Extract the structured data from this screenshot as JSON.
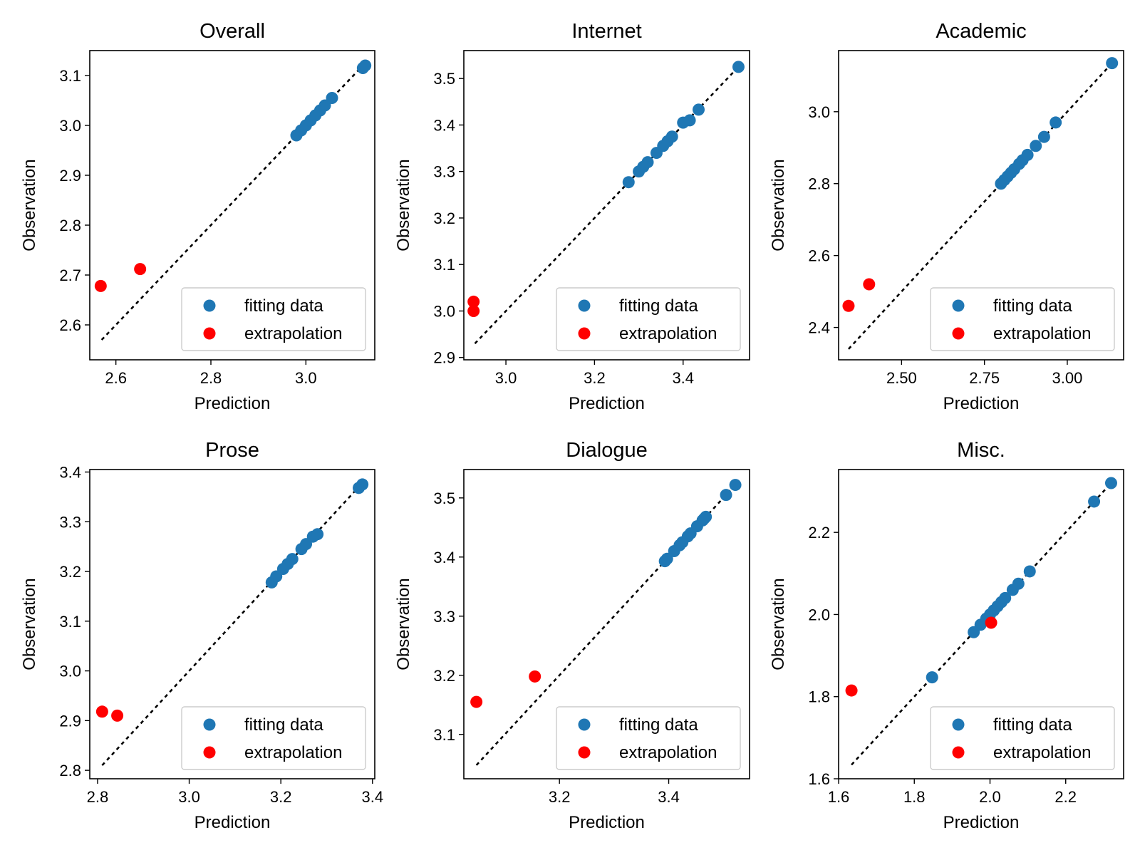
{
  "colors": {
    "fitting": "#1f77b4",
    "extrapolation": "#ff0000",
    "identity_line": "#000000"
  },
  "legend": {
    "fitting_label": "fitting data",
    "extrapolation_label": "extrapolation",
    "placement": "lower-right"
  },
  "chart_data": [
    {
      "type": "scatter",
      "title": "Overall",
      "xlabel": "Prediction",
      "ylabel": "Observation",
      "xlim": [
        2.545,
        3.145
      ],
      "ylim": [
        2.53,
        3.15
      ],
      "xticks": [
        2.6,
        2.8,
        3.0
      ],
      "xticklabels": [
        "2.6",
        "2.8",
        "3.0"
      ],
      "yticks": [
        2.6,
        2.7,
        2.8,
        2.9,
        3.0,
        3.1
      ],
      "yticklabels": [
        "2.6",
        "2.7",
        "2.8",
        "2.9",
        "3.0",
        "3.1"
      ],
      "identity_line": [
        2.57,
        3.12
      ],
      "series": [
        {
          "name": "fitting data",
          "points": [
            [
              2.98,
              2.98
            ],
            [
              2.99,
              2.99
            ],
            [
              3.0,
              3.0
            ],
            [
              3.01,
              3.01
            ],
            [
              3.02,
              3.02
            ],
            [
              3.03,
              3.03
            ],
            [
              3.04,
              3.04
            ],
            [
              3.055,
              3.055
            ],
            [
              3.12,
              3.115
            ],
            [
              3.125,
              3.12
            ]
          ]
        },
        {
          "name": "extrapolation",
          "points": [
            [
              2.568,
              2.678
            ],
            [
              2.651,
              2.712
            ]
          ]
        }
      ]
    },
    {
      "type": "scatter",
      "title": "Internet",
      "xlabel": "Prediction",
      "ylabel": "Observation",
      "xlim": [
        2.905,
        3.55
      ],
      "ylim": [
        2.895,
        3.56
      ],
      "xticks": [
        3.0,
        3.2,
        3.4
      ],
      "xticklabels": [
        "3.0",
        "3.2",
        "3.4"
      ],
      "yticks": [
        2.9,
        3.0,
        3.1,
        3.2,
        3.3,
        3.4,
        3.5
      ],
      "yticklabels": [
        "2.9",
        "3.0",
        "3.1",
        "3.2",
        "3.3",
        "3.4",
        "3.5"
      ],
      "identity_line": [
        2.93,
        3.525
      ],
      "series": [
        {
          "name": "fitting data",
          "points": [
            [
              3.277,
              3.277
            ],
            [
              3.3,
              3.3
            ],
            [
              3.31,
              3.31
            ],
            [
              3.32,
              3.32
            ],
            [
              3.34,
              3.34
            ],
            [
              3.355,
              3.355
            ],
            [
              3.365,
              3.365
            ],
            [
              3.375,
              3.375
            ],
            [
              3.4,
              3.405
            ],
            [
              3.415,
              3.41
            ],
            [
              3.435,
              3.433
            ],
            [
              3.525,
              3.525
            ]
          ]
        },
        {
          "name": "extrapolation",
          "points": [
            [
              2.927,
              3.02
            ],
            [
              2.927,
              3.0
            ]
          ]
        }
      ]
    },
    {
      "type": "scatter",
      "title": "Academic",
      "xlabel": "Prediction",
      "ylabel": "Observation",
      "xlim": [
        2.31,
        3.17
      ],
      "ylim": [
        2.31,
        3.17
      ],
      "xticks": [
        2.5,
        2.75,
        3.0
      ],
      "xticklabels": [
        "2.50",
        "2.75",
        "3.00"
      ],
      "yticks": [
        2.4,
        2.6,
        2.8,
        3.0
      ],
      "yticklabels": [
        "2.4",
        "2.6",
        "2.8",
        "3.0"
      ],
      "identity_line": [
        2.34,
        3.135
      ],
      "series": [
        {
          "name": "fitting data",
          "points": [
            [
              2.8,
              2.8
            ],
            [
              2.81,
              2.81
            ],
            [
              2.82,
              2.82
            ],
            [
              2.83,
              2.83
            ],
            [
              2.84,
              2.84
            ],
            [
              2.855,
              2.855
            ],
            [
              2.865,
              2.865
            ],
            [
              2.88,
              2.88
            ],
            [
              2.905,
              2.905
            ],
            [
              2.93,
              2.93
            ],
            [
              2.965,
              2.97
            ],
            [
              3.135,
              3.135
            ]
          ]
        },
        {
          "name": "extrapolation",
          "points": [
            [
              2.34,
              2.46
            ],
            [
              2.402,
              2.52
            ]
          ]
        }
      ]
    },
    {
      "type": "scatter",
      "title": "Prose",
      "xlabel": "Prediction",
      "ylabel": "Observation",
      "xlim": [
        2.783,
        3.405
      ],
      "ylim": [
        2.783,
        3.405
      ],
      "xticks": [
        2.8,
        3.0,
        3.2,
        3.4
      ],
      "xticklabels": [
        "2.8",
        "3.0",
        "3.2",
        "3.4"
      ],
      "yticks": [
        2.8,
        2.9,
        3.0,
        3.1,
        3.2,
        3.3,
        3.4
      ],
      "yticklabels": [
        "2.8",
        "2.9",
        "3.0",
        "3.1",
        "3.2",
        "3.3",
        "3.4"
      ],
      "identity_line": [
        2.81,
        3.375
      ],
      "series": [
        {
          "name": "fitting data",
          "points": [
            [
              3.18,
              3.178
            ],
            [
              3.19,
              3.19
            ],
            [
              3.205,
              3.205
            ],
            [
              3.215,
              3.215
            ],
            [
              3.225,
              3.225
            ],
            [
              3.245,
              3.245
            ],
            [
              3.255,
              3.255
            ],
            [
              3.27,
              3.27
            ],
            [
              3.28,
              3.275
            ],
            [
              3.37,
              3.368
            ],
            [
              3.378,
              3.375
            ]
          ]
        },
        {
          "name": "extrapolation",
          "points": [
            [
              2.81,
              2.918
            ],
            [
              2.843,
              2.91
            ]
          ]
        }
      ]
    },
    {
      "type": "scatter",
      "title": "Dialogue",
      "xlabel": "Prediction",
      "ylabel": "Observation",
      "xlim": [
        3.025,
        3.548
      ],
      "ylim": [
        3.025,
        3.548
      ],
      "xticks": [
        3.2,
        3.4
      ],
      "xticklabels": [
        "3.2",
        "3.4"
      ],
      "yticks": [
        3.1,
        3.2,
        3.3,
        3.4,
        3.5
      ],
      "yticklabels": [
        "3.1",
        "3.2",
        "3.3",
        "3.4",
        "3.5"
      ],
      "identity_line": [
        3.048,
        3.522
      ],
      "series": [
        {
          "name": "fitting data",
          "points": [
            [
              3.393,
              3.393
            ],
            [
              3.397,
              3.397
            ],
            [
              3.41,
              3.41
            ],
            [
              3.42,
              3.42
            ],
            [
              3.425,
              3.425
            ],
            [
              3.435,
              3.435
            ],
            [
              3.44,
              3.44
            ],
            [
              3.452,
              3.452
            ],
            [
              3.462,
              3.462
            ],
            [
              3.468,
              3.468
            ],
            [
              3.465,
              3.465
            ],
            [
              3.505,
              3.505
            ],
            [
              3.522,
              3.522
            ]
          ]
        },
        {
          "name": "extrapolation",
          "points": [
            [
              3.048,
              3.155
            ],
            [
              3.155,
              3.198
            ]
          ]
        }
      ]
    },
    {
      "type": "scatter",
      "title": "Misc.",
      "xlabel": "Prediction",
      "ylabel": "Observation",
      "xlim": [
        1.6,
        2.353
      ],
      "ylim": [
        1.6,
        2.353
      ],
      "xticks": [
        1.6,
        1.8,
        2.0,
        2.2
      ],
      "xticklabels": [
        "1.6",
        "1.8",
        "2.0",
        "2.2"
      ],
      "yticks": [
        1.6,
        1.8,
        2.0,
        2.2
      ],
      "yticklabels": [
        "1.6",
        "1.8",
        "2.0",
        "2.2"
      ],
      "identity_line": [
        1.634,
        2.32
      ],
      "series": [
        {
          "name": "fitting data",
          "points": [
            [
              1.847,
              1.847
            ],
            [
              1.957,
              1.957
            ],
            [
              1.975,
              1.975
            ],
            [
              1.99,
              1.99
            ],
            [
              2.0,
              2.0
            ],
            [
              2.01,
              2.01
            ],
            [
              2.02,
              2.02
            ],
            [
              2.03,
              2.03
            ],
            [
              2.04,
              2.04
            ],
            [
              2.06,
              2.06
            ],
            [
              2.075,
              2.075
            ],
            [
              2.105,
              2.105
            ],
            [
              2.275,
              2.275
            ],
            [
              2.32,
              2.32
            ]
          ]
        },
        {
          "name": "extrapolation",
          "points": [
            [
              1.634,
              1.815
            ],
            [
              2.003,
              1.98
            ]
          ]
        }
      ]
    }
  ]
}
